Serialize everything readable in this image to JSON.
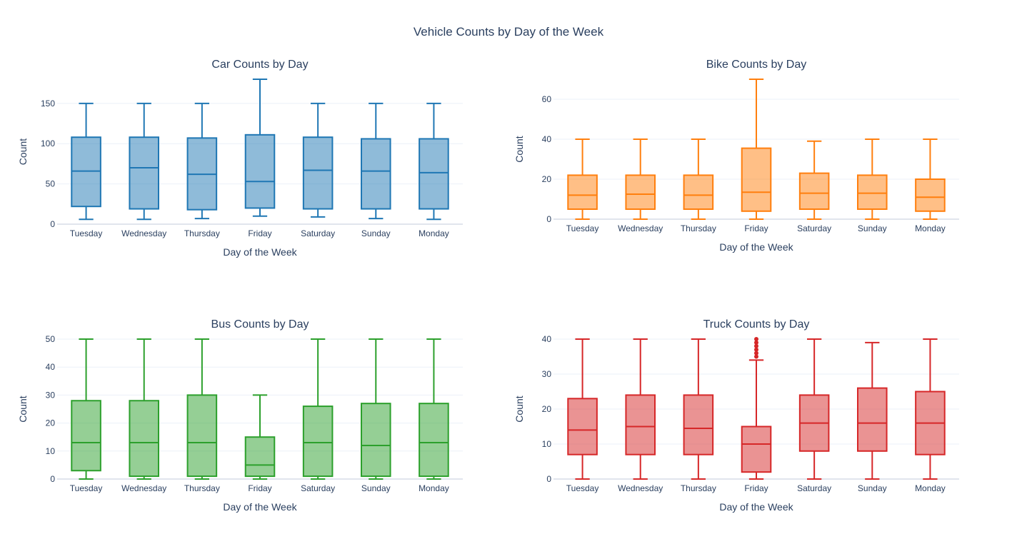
{
  "title": "Vehicle Counts by Day of the Week",
  "chart_data": [
    {
      "type": "box",
      "title": "Car Counts by Day",
      "xlabel": "Day of the Week",
      "ylabel": "Count",
      "color": "#1f77b4",
      "fill": "rgba(31,119,180,0.5)",
      "ylim": [
        0,
        180
      ],
      "yticks": [
        0,
        50,
        100,
        150
      ],
      "categories": [
        "Tuesday",
        "Wednesday",
        "Thursday",
        "Friday",
        "Saturday",
        "Sunday",
        "Monday"
      ],
      "boxes": [
        {
          "min": 6,
          "q1": 22,
          "median": 66,
          "q3": 108,
          "max": 150
        },
        {
          "min": 6,
          "q1": 19,
          "median": 70,
          "q3": 108,
          "max": 150
        },
        {
          "min": 7,
          "q1": 18,
          "median": 62,
          "q3": 107,
          "max": 150
        },
        {
          "min": 10,
          "q1": 20,
          "median": 53,
          "q3": 111,
          "max": 180
        },
        {
          "min": 9,
          "q1": 19,
          "median": 67,
          "q3": 108,
          "max": 150
        },
        {
          "min": 7,
          "q1": 19,
          "median": 66,
          "q3": 106,
          "max": 150
        },
        {
          "min": 6,
          "q1": 19,
          "median": 64,
          "q3": 106,
          "max": 150
        }
      ]
    },
    {
      "type": "box",
      "title": "Bike Counts by Day",
      "xlabel": "Day of the Week",
      "ylabel": "Count",
      "color": "#ff7f0e",
      "fill": "rgba(255,127,14,0.5)",
      "ylim": [
        0,
        70
      ],
      "yticks": [
        0,
        20,
        40,
        60
      ],
      "categories": [
        "Tuesday",
        "Wednesday",
        "Thursday",
        "Friday",
        "Saturday",
        "Sunday",
        "Monday"
      ],
      "boxes": [
        {
          "min": 0,
          "q1": 5,
          "median": 12,
          "q3": 22,
          "max": 40
        },
        {
          "min": 0,
          "q1": 5,
          "median": 12.5,
          "q3": 22,
          "max": 40
        },
        {
          "min": 0,
          "q1": 5,
          "median": 12,
          "q3": 22,
          "max": 40
        },
        {
          "min": 0,
          "q1": 4,
          "median": 13.5,
          "q3": 35.5,
          "max": 70
        },
        {
          "min": 0,
          "q1": 5,
          "median": 13,
          "q3": 23,
          "max": 39
        },
        {
          "min": 0,
          "q1": 5,
          "median": 13,
          "q3": 22,
          "max": 40
        },
        {
          "min": 0,
          "q1": 4,
          "median": 11,
          "q3": 20,
          "max": 40
        }
      ]
    },
    {
      "type": "box",
      "title": "Bus Counts by Day",
      "xlabel": "Day of the Week",
      "ylabel": "Count",
      "color": "#2ca02c",
      "fill": "rgba(44,160,44,0.5)",
      "ylim": [
        0,
        50
      ],
      "yticks": [
        0,
        10,
        20,
        30,
        40,
        50
      ],
      "categories": [
        "Tuesday",
        "Wednesday",
        "Thursday",
        "Friday",
        "Saturday",
        "Sunday",
        "Monday"
      ],
      "boxes": [
        {
          "min": 0,
          "q1": 3,
          "median": 13,
          "q3": 28,
          "max": 50
        },
        {
          "min": 0,
          "q1": 1,
          "median": 13,
          "q3": 28,
          "max": 50
        },
        {
          "min": 0,
          "q1": 1,
          "median": 13,
          "q3": 30,
          "max": 50
        },
        {
          "min": 0,
          "q1": 1,
          "median": 5,
          "q3": 15,
          "max": 30
        },
        {
          "min": 0,
          "q1": 1,
          "median": 13,
          "q3": 26,
          "max": 50
        },
        {
          "min": 0,
          "q1": 1,
          "median": 12,
          "q3": 27,
          "max": 50
        },
        {
          "min": 0,
          "q1": 1,
          "median": 13,
          "q3": 27,
          "max": 50
        }
      ]
    },
    {
      "type": "box",
      "title": "Truck Counts by Day",
      "xlabel": "Day of the Week",
      "ylabel": "Count",
      "color": "#d62728",
      "fill": "rgba(214,39,40,0.5)",
      "ylim": [
        0,
        40
      ],
      "yticks": [
        0,
        10,
        20,
        30,
        40
      ],
      "categories": [
        "Tuesday",
        "Wednesday",
        "Thursday",
        "Friday",
        "Saturday",
        "Sunday",
        "Monday"
      ],
      "boxes": [
        {
          "min": 0,
          "q1": 7,
          "median": 14,
          "q3": 23,
          "max": 40
        },
        {
          "min": 0,
          "q1": 7,
          "median": 15,
          "q3": 24,
          "max": 40
        },
        {
          "min": 0,
          "q1": 7,
          "median": 14.5,
          "q3": 24,
          "max": 40
        },
        {
          "min": 0,
          "q1": 2,
          "median": 10,
          "q3": 15,
          "max": 34,
          "outliers": [
            35,
            36,
            37,
            38,
            39,
            40
          ]
        },
        {
          "min": 0,
          "q1": 8,
          "median": 16,
          "q3": 24,
          "max": 40
        },
        {
          "min": 0,
          "q1": 8,
          "median": 16,
          "q3": 26,
          "max": 39
        },
        {
          "min": 0,
          "q1": 7,
          "median": 16,
          "q3": 25,
          "max": 40
        }
      ]
    }
  ]
}
